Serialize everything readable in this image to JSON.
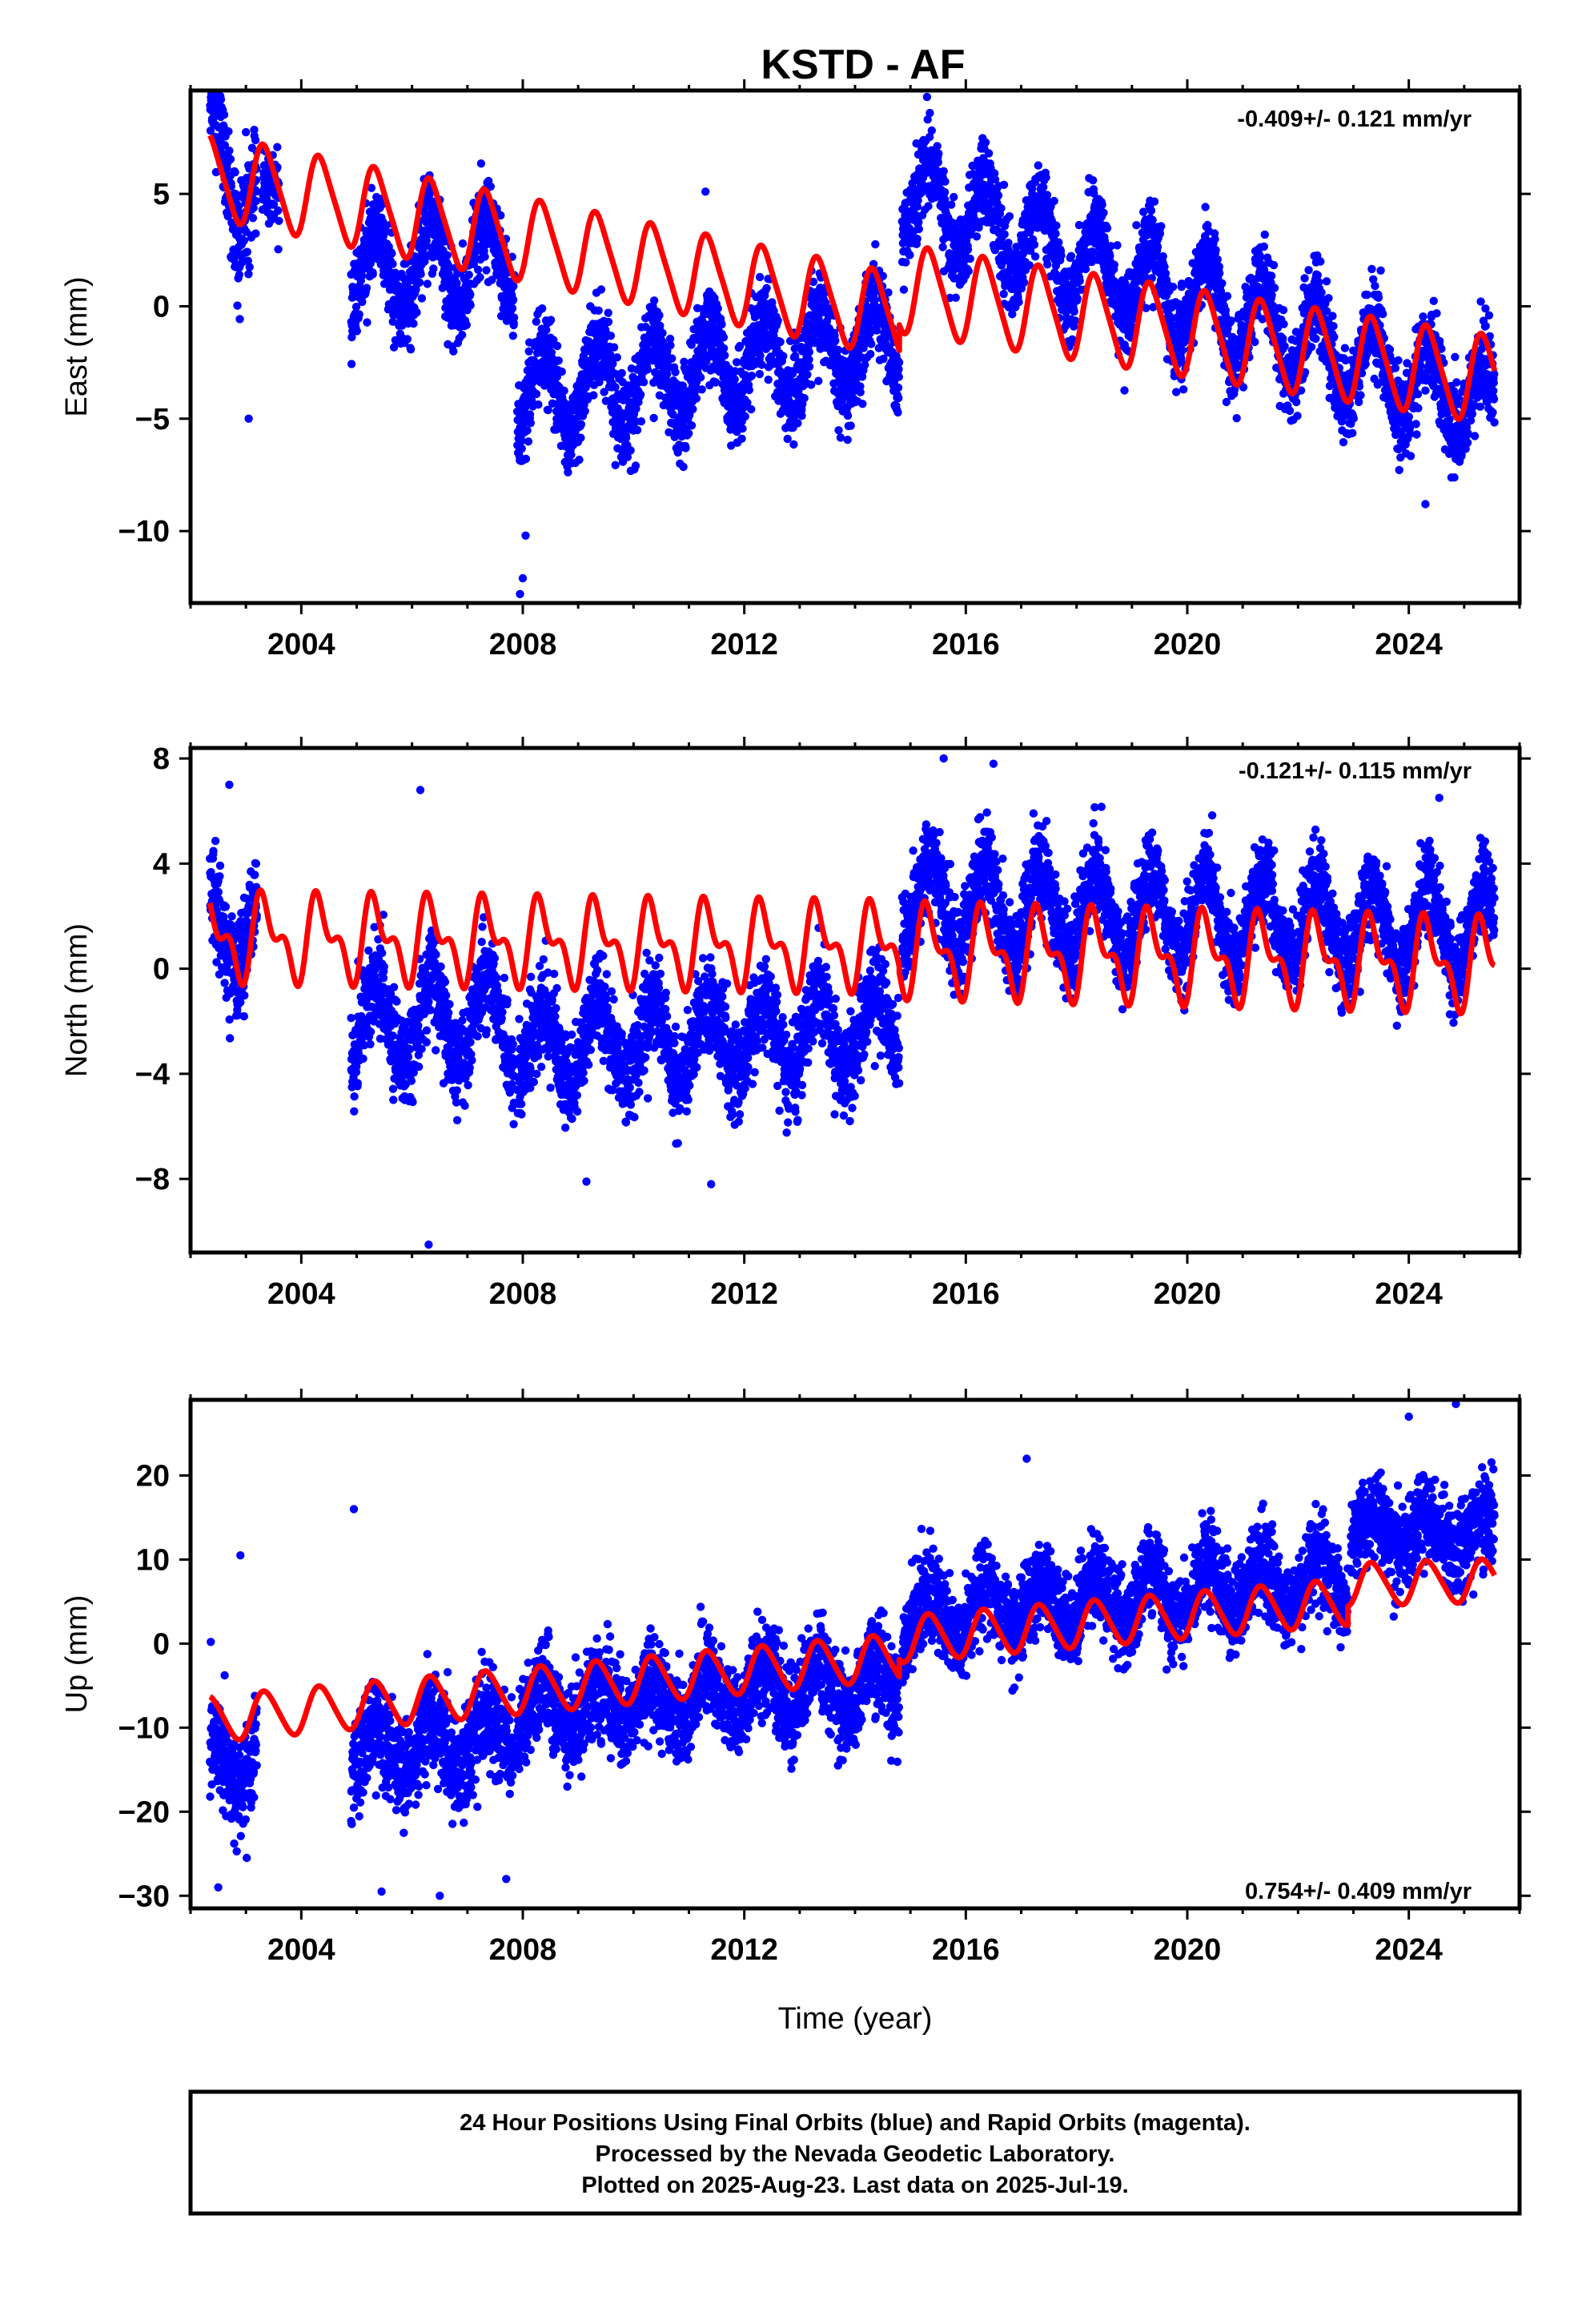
{
  "figure": {
    "title": "KSTD - AF",
    "caption": [
      "24 Hour Positions Using Final Orbits (blue) and Rapid Orbits (magenta).",
      "Processed by the Nevada Geodetic Laboratory.",
      "Plotted on 2025-Aug-23. Last data on 2025-Jul-19."
    ],
    "colors": {
      "data": "#0000ff",
      "model": "#ff0000",
      "axis": "#000000"
    }
  },
  "chart_data": [
    {
      "type": "scatter",
      "panel": "east",
      "ylabel": "East (mm)",
      "xlabel": "",
      "rate_label": "-0.409+/- 0.121 mm/yr",
      "xlim": [
        2002.0,
        2026.0
      ],
      "ylim": [
        -13.2,
        9.6
      ],
      "xticks": [
        2004,
        2008,
        2012,
        2016,
        2020,
        2024
      ],
      "xtick_labels": [
        "2004",
        "2008",
        "2012",
        "2016",
        "2020",
        "2024"
      ],
      "yticks": [
        5,
        0,
        -5,
        -10
      ],
      "ytick_labels": [
        "5",
        "0",
        "−5",
        "−10"
      ],
      "grid": false,
      "series": [
        {
          "role": "observations",
          "color": "#0000ff",
          "segments": [
            {
              "x": [
                2002.35,
                2003.2
              ],
              "start": 7.3,
              "slope": -3.0,
              "amplitude": 2.4,
              "noise": 1.6
            },
            {
              "x": [
                2003.3,
                2003.6
              ],
              "start": 5.0,
              "slope": 0,
              "amplitude": 0.5,
              "noise": 1.2
            },
            {
              "x": [
                2004.9,
                2007.85
              ],
              "start": 1.5,
              "slope": 0.2,
              "amplitude": 1.9,
              "noise": 1.3
            },
            {
              "x": [
                2007.9,
                2014.8
              ],
              "start": -4.0,
              "slope": 0.35,
              "amplitude": 1.9,
              "noise": 1.3
            },
            {
              "x": [
                2014.85,
                2025.55
              ],
              "start": 5.0,
              "slope": -0.9,
              "amplitude": 1.9,
              "noise": 1.2
            }
          ],
          "outliers": [
            [
              2002.55,
              9.2
            ],
            [
              2003.05,
              -5.0
            ],
            [
              2007.95,
              -12.8
            ],
            [
              2008.0,
              -12.1
            ],
            [
              2008.05,
              -10.2
            ],
            [
              2011.3,
              5.1
            ],
            [
              2015.35,
              8.6
            ],
            [
              2024.3,
              -8.8
            ]
          ]
        },
        {
          "role": "model",
          "color": "#ff0000",
          "x_range": [
            2002.35,
            2025.55
          ],
          "segments": [
            {
              "x": [
                2002.35,
                2014.8
              ],
              "start": 5.8,
              "slope": -0.5,
              "annual": 1.8,
              "semiannual": 0.3
            },
            {
              "x": [
                2014.8,
                2025.55
              ],
              "start": 0.8,
              "slope": -0.38,
              "annual": 1.9,
              "semiannual": 0.3
            }
          ]
        }
      ]
    },
    {
      "type": "scatter",
      "panel": "north",
      "ylabel": "North (mm)",
      "xlabel": "",
      "rate_label": "-0.121+/- 0.115 mm/yr",
      "xlim": [
        2002.0,
        2026.0
      ],
      "ylim": [
        -10.8,
        8.4
      ],
      "xticks": [
        2004,
        2008,
        2012,
        2016,
        2020,
        2024
      ],
      "xtick_labels": [
        "2004",
        "2008",
        "2012",
        "2016",
        "2020",
        "2024"
      ],
      "yticks": [
        8,
        4,
        0,
        -4,
        -8
      ],
      "ytick_labels": [
        "8",
        "4",
        "0",
        "−4",
        "−8"
      ],
      "grid": false,
      "series": [
        {
          "role": "observations",
          "color": "#0000ff",
          "segments": [
            {
              "x": [
                2002.35,
                2003.2
              ],
              "start": 1.5,
              "slope": 0,
              "amplitude": 1.4,
              "noise": 1.4
            },
            {
              "x": [
                2004.9,
                2007.85
              ],
              "start": -2.0,
              "slope": 0,
              "amplitude": 1.6,
              "noise": 1.2
            },
            {
              "x": [
                2007.9,
                2014.8
              ],
              "start": -3.0,
              "slope": 0.1,
              "amplitude": 1.5,
              "noise": 1.2
            },
            {
              "x": [
                2014.85,
                2025.55
              ],
              "start": 2.5,
              "slope": -0.1,
              "amplitude": 1.6,
              "noise": 1.1
            }
          ],
          "outliers": [
            [
              2002.7,
              7.0
            ],
            [
              2006.15,
              6.8
            ],
            [
              2006.3,
              -10.5
            ],
            [
              2015.6,
              8.0
            ],
            [
              2016.5,
              7.8
            ],
            [
              2024.55,
              6.5
            ],
            [
              2011.4,
              -8.2
            ],
            [
              2009.15,
              -8.1
            ]
          ]
        },
        {
          "role": "model",
          "color": "#ff0000",
          "x_range": [
            2002.35,
            2025.55
          ],
          "segments": [
            {
              "x": [
                2002.35,
                2014.8
              ],
              "start": 1.2,
              "slope": -0.03,
              "annual": 1.3,
              "semiannual": 0.8
            },
            {
              "x": [
                2014.8,
                2025.55
              ],
              "start": 0.7,
              "slope": -0.05,
              "annual": 1.4,
              "semiannual": 0.8
            }
          ]
        }
      ]
    },
    {
      "type": "scatter",
      "panel": "up",
      "ylabel": "Up (mm)",
      "xlabel": "Time (year)",
      "rate_label": "0.754+/- 0.409 mm/yr",
      "xlim": [
        2002.0,
        2026.0
      ],
      "ylim": [
        -31.5,
        29.0
      ],
      "xticks": [
        2004,
        2008,
        2012,
        2016,
        2020,
        2024
      ],
      "xtick_labels": [
        "2004",
        "2008",
        "2012",
        "2016",
        "2020",
        "2024"
      ],
      "yticks": [
        20,
        10,
        0,
        -10,
        -20,
        -30
      ],
      "ytick_labels": [
        "20",
        "10",
        "0",
        "−10",
        "−20",
        "−30"
      ],
      "grid": false,
      "series": [
        {
          "role": "observations",
          "color": "#0000ff",
          "segments": [
            {
              "x": [
                2002.35,
                2003.2
              ],
              "start": -14.0,
              "slope": 0,
              "amplitude": 3.0,
              "noise": 4.0
            },
            {
              "x": [
                2004.9,
                2007.85
              ],
              "start": -13.0,
              "slope": 0.6,
              "amplitude": 3.0,
              "noise": 4.0
            },
            {
              "x": [
                2007.9,
                2014.8
              ],
              "start": -8.0,
              "slope": 0.5,
              "amplitude": 3.0,
              "noise": 3.6
            },
            {
              "x": [
                2014.85,
                2022.9
              ],
              "start": 3.0,
              "slope": 0.6,
              "amplitude": 3.0,
              "noise": 3.5
            },
            {
              "x": [
                2022.95,
                2025.55
              ],
              "start": 13.0,
              "slope": 0,
              "amplitude": 2.5,
              "noise": 3.5
            }
          ],
          "outliers": [
            [
              2002.5,
              -29.0
            ],
            [
              2005.45,
              -29.5
            ],
            [
              2006.5,
              -30.0
            ],
            [
              2007.7,
              -28.0
            ],
            [
              2024.0,
              27.0
            ],
            [
              2024.85,
              28.5
            ],
            [
              2004.95,
              16.0
            ],
            [
              2002.9,
              10.5
            ],
            [
              2017.1,
              22.0
            ]
          ]
        },
        {
          "role": "model",
          "color": "#ff0000",
          "x_range": [
            2002.35,
            2025.55
          ],
          "segments": [
            {
              "x": [
                2002.35,
                2014.8
              ],
              "start": -9.0,
              "slope": 0.6,
              "annual": 2.7,
              "semiannual": 0.3
            },
            {
              "x": [
                2014.8,
                2022.9
              ],
              "start": 0.5,
              "slope": 0.55,
              "annual": 2.7,
              "semiannual": 0.3
            },
            {
              "x": [
                2022.9,
                2025.55
              ],
              "start": 7.0,
              "slope": 0.2,
              "annual": 2.5,
              "semiannual": 0.3
            }
          ]
        }
      ]
    }
  ]
}
